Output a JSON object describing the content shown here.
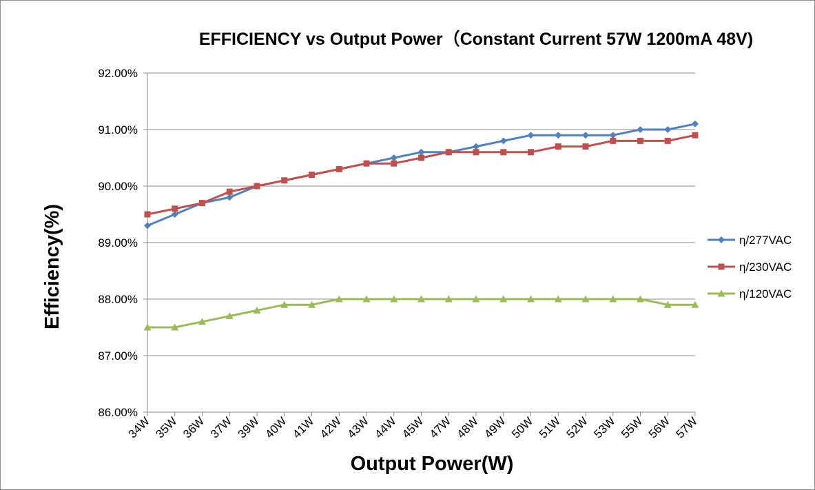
{
  "chart_data": {
    "type": "line",
    "title": "EFFICIENCY vs Output Power（Constant Current 57W 1200mA 48V)",
    "xlabel": "Output Power(W)",
    "ylabel": "Efficiency(%)",
    "categories": [
      "34W",
      "35W",
      "36W",
      "37W",
      "39W",
      "40W",
      "41W",
      "42W",
      "43W",
      "44W",
      "45W",
      "47W",
      "48W",
      "49W",
      "50W",
      "51W",
      "52W",
      "53W",
      "55W",
      "56W",
      "57W"
    ],
    "ylim": [
      86.0,
      92.0
    ],
    "yticks": [
      86.0,
      87.0,
      88.0,
      89.0,
      90.0,
      91.0,
      92.0
    ],
    "ytick_labels": [
      "86.00%",
      "87.00%",
      "88.00%",
      "89.00%",
      "90.00%",
      "91.00%",
      "92.00%"
    ],
    "grid": "horizontal",
    "legend_position": "right",
    "series": [
      {
        "name": "η/277VAC",
        "color": "#4F81BD",
        "marker": "diamond",
        "values": [
          89.3,
          89.5,
          89.7,
          89.8,
          90.0,
          90.1,
          90.2,
          90.3,
          90.4,
          90.5,
          90.6,
          90.6,
          90.7,
          90.8,
          90.9,
          90.9,
          90.9,
          90.9,
          91.0,
          91.0,
          91.1
        ]
      },
      {
        "name": "η/230VAC",
        "color": "#C0504D",
        "marker": "square",
        "values": [
          89.5,
          89.6,
          89.7,
          89.9,
          90.0,
          90.1,
          90.2,
          90.3,
          90.4,
          90.4,
          90.5,
          90.6,
          90.6,
          90.6,
          90.6,
          90.7,
          90.7,
          90.8,
          90.8,
          90.8,
          90.9
        ]
      },
      {
        "name": "η/120VAC",
        "color": "#9BBB59",
        "marker": "triangle",
        "values": [
          87.5,
          87.5,
          87.6,
          87.7,
          87.8,
          87.9,
          87.9,
          88.0,
          88.0,
          88.0,
          88.0,
          88.0,
          88.0,
          88.0,
          88.0,
          88.0,
          88.0,
          88.0,
          88.0,
          87.9,
          87.9
        ]
      }
    ]
  }
}
